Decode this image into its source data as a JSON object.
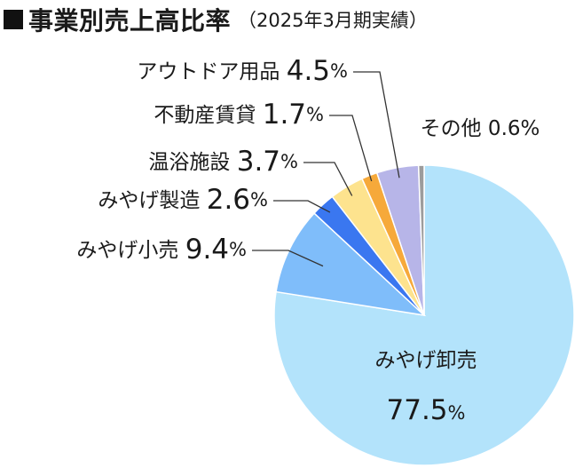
{
  "header": {
    "title": "事業別売上高比率",
    "subtitle": "（2025年3月期実績）"
  },
  "chart_data": {
    "type": "pie",
    "title": "事業別売上高比率",
    "subtitle": "（2025年3月期実績）",
    "unit": "%",
    "slices": [
      {
        "name": "みやげ卸売",
        "value": 77.5,
        "color": "#b3e3fb"
      },
      {
        "name": "みやげ小売",
        "value": 9.4,
        "color": "#7fbdfa"
      },
      {
        "name": "みやげ製造",
        "value": 2.6,
        "color": "#3a77f0"
      },
      {
        "name": "温浴施設",
        "value": 3.7,
        "color": "#fde38e"
      },
      {
        "name": "不動産賃貸",
        "value": 1.7,
        "color": "#f6a93a"
      },
      {
        "name": "アウトドア用品",
        "value": 4.5,
        "color": "#b7b5e8"
      },
      {
        "name": "その他",
        "value": 0.6,
        "color": "#9c9c9c"
      }
    ]
  }
}
